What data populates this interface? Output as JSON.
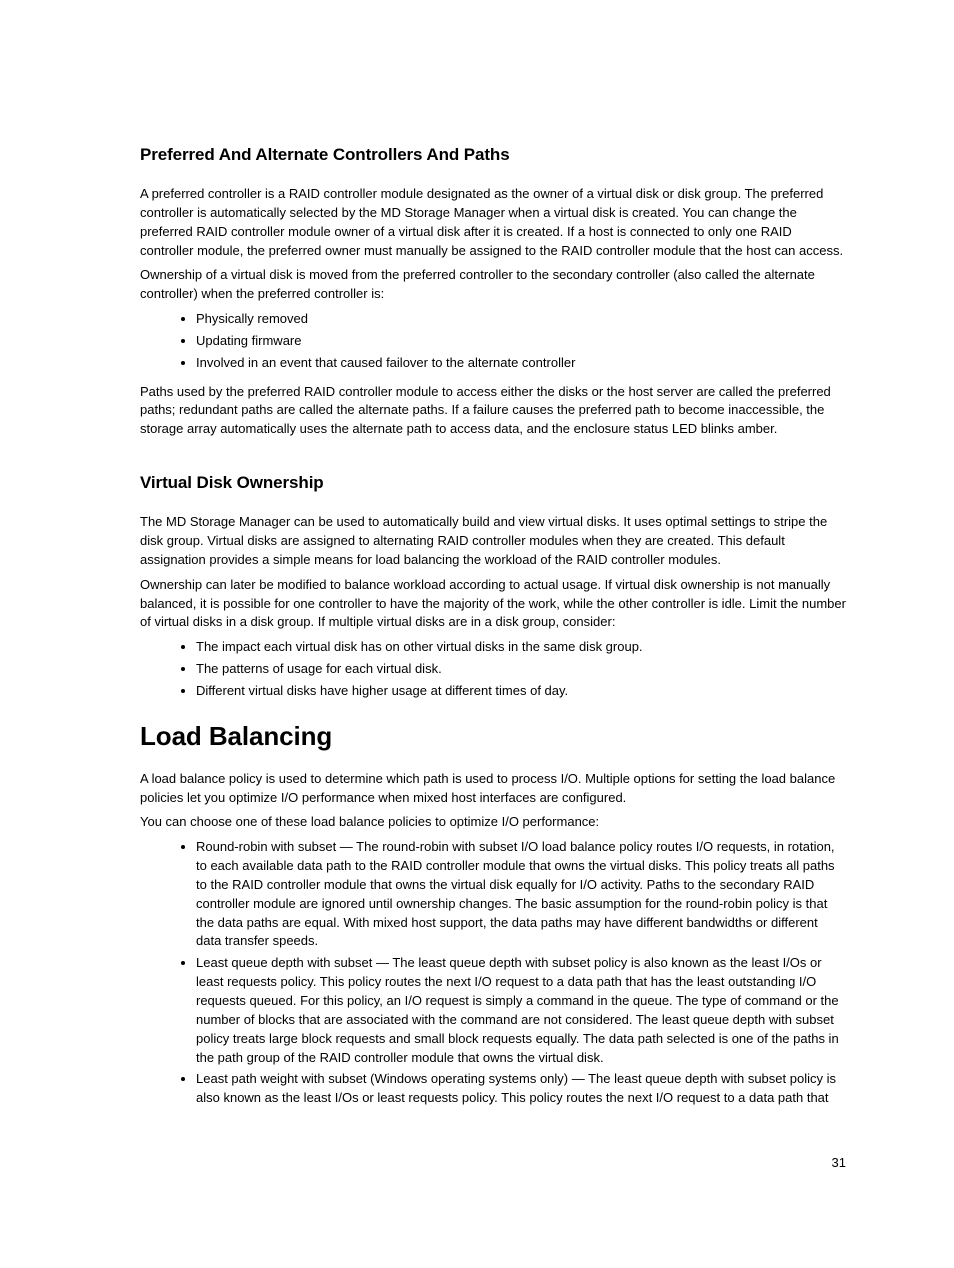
{
  "page": {
    "number": "31",
    "background_color": "#ffffff",
    "text_color": "#000000"
  },
  "sections": {
    "s1": {
      "heading": "Preferred And Alternate Controllers And Paths",
      "p1": "A preferred controller is a RAID controller module designated as the owner of a virtual disk or disk group. The preferred controller is automatically selected by the MD Storage Manager when a virtual disk is created. You can change the preferred RAID controller module owner of a virtual disk after it is created. If a host is connected to only one RAID controller module, the preferred owner must manually be assigned to the RAID controller module that the host can access.",
      "p2": "Ownership of a virtual disk is moved from the preferred controller to the secondary controller (also called the alternate controller) when the preferred controller is:",
      "bullets": [
        "Physically removed",
        "Updating firmware",
        "Involved in an event that caused failover to the alternate controller"
      ],
      "p3": "Paths used by the preferred RAID controller module to access either the disks or the host server are called the preferred paths; redundant paths are called the alternate paths. If a failure causes the preferred path to become inaccessible, the storage array automatically uses the alternate path to access data, and the enclosure status LED blinks amber."
    },
    "s2": {
      "heading": "Virtual Disk Ownership",
      "p1": "The MD Storage Manager can be used to automatically build and view virtual disks. It uses optimal settings to stripe the disk group. Virtual disks are assigned to alternating RAID controller modules when they are created. This default assignation provides a simple means for load balancing the workload of the RAID controller modules.",
      "p2": "Ownership can later be modified to balance workload according to actual usage. If virtual disk ownership is not manually balanced, it is possible for one controller to have the majority of the work, while the other controller is idle. Limit the number of virtual disks in a disk group. If multiple virtual disks are in a disk group, consider:",
      "bullets": [
        "The impact each virtual disk has on other virtual disks in the same disk group.",
        "The patterns of usage for each virtual disk.",
        "Different virtual disks have higher usage at different times of day."
      ]
    },
    "s3": {
      "heading": "Load Balancing",
      "p1": "A load balance policy is used to determine which path is used to process I/O. Multiple options for setting the load balance policies let you optimize I/O performance when mixed host interfaces are configured.",
      "p2": "You can choose one of these load balance policies to optimize I/O performance:",
      "bullets": [
        "Round-robin with subset — The round-robin with subset I/O load balance policy routes I/O requests, in rotation, to each available data path to the RAID controller module that owns the virtual disks. This policy treats all paths to the RAID controller module that owns the virtual disk equally for I/O activity. Paths to the secondary RAID controller module are ignored until ownership changes. The basic assumption for the round-robin policy is that the data paths are equal. With mixed host support, the data paths may have different bandwidths or different data transfer speeds.",
        "Least queue depth with subset — The least queue depth with subset policy is also known as the least I/Os or least requests policy. This policy routes the next I/O request to a data path that has the least outstanding I/O requests queued. For this policy, an I/O request is simply a command in the queue. The type of command or the number of blocks that are associated with the command are not considered. The least queue depth with subset policy treats large block requests and small block requests equally. The data path selected is one of the paths in the path group of the RAID controller module that owns the virtual disk.",
        "Least path weight with subset (Windows operating systems only) — The least queue depth with subset policy is also known as the least I/Os or least requests policy. This policy routes the next I/O request to a data path that"
      ]
    }
  }
}
